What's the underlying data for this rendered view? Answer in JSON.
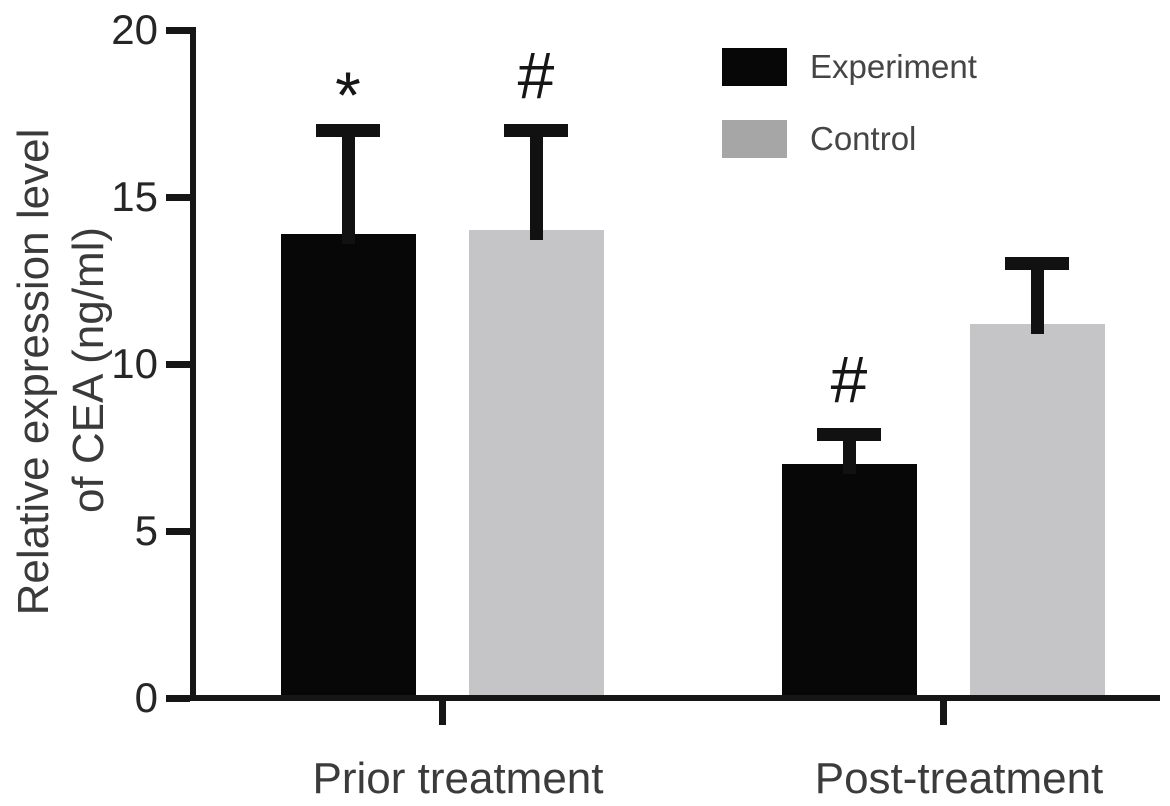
{
  "chart_data": {
    "type": "bar",
    "title": "",
    "categories": [
      "Prior treatment",
      "Post-treatment"
    ],
    "series": [
      {
        "name": "Experiment",
        "color": "#070707",
        "values": [
          13.9,
          7.0
        ],
        "errors_up": [
          3.1,
          0.9
        ]
      },
      {
        "name": "Control",
        "color": "#c5c5c7",
        "values": [
          14.0,
          11.2
        ],
        "errors_up": [
          3.0,
          1.8
        ]
      }
    ],
    "annotations": [
      {
        "text": "*",
        "category_index": 0,
        "series_index": 0
      },
      {
        "text": "#",
        "category_index": 0,
        "series_index": 1
      },
      {
        "text": "#",
        "category_index": 1,
        "series_index": 0
      }
    ],
    "ylabel_lines": [
      "Relative expression level",
      "of CEA (ng/ml)"
    ],
    "xlabel": "",
    "ylim": [
      0,
      20
    ],
    "yticks": [
      "0",
      "5",
      "10",
      "15",
      "20"
    ],
    "grid": false,
    "error_bars": "upper-only-with-caps",
    "legend": {
      "position": "top-right",
      "items": [
        {
          "label": "Experiment",
          "swatch_color": "#070707"
        },
        {
          "label": "Control",
          "swatch_color": "#a6a6a6"
        }
      ]
    }
  },
  "colors": {
    "axis": "#161616",
    "error_bar": "#111111",
    "tick_label_text": "#262626",
    "category_label_text": "#3b3b3b",
    "y_axis_title_text": "#3a3a3a",
    "legend_label_text": "#454545",
    "annotation_text": "#161616",
    "background": "#ffffff"
  }
}
